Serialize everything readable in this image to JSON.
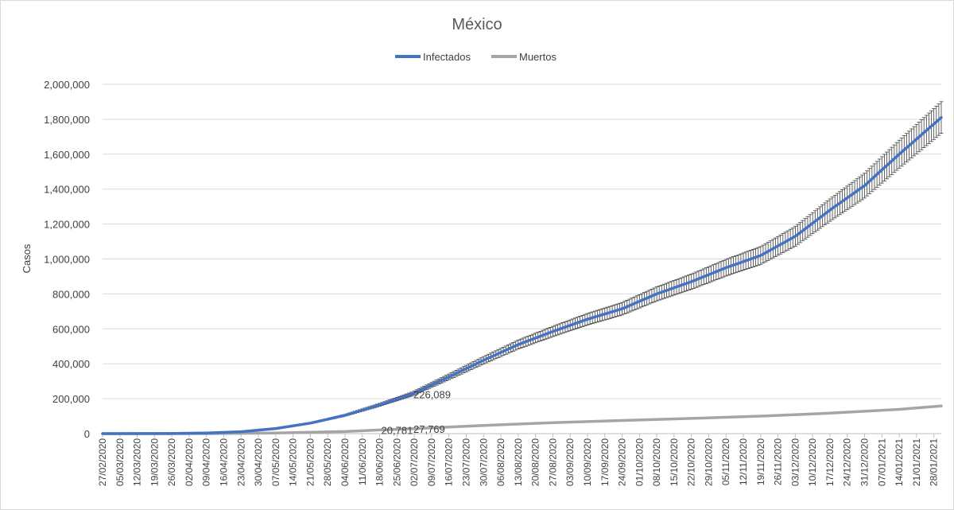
{
  "chart_data": {
    "type": "line",
    "title": "México",
    "xlabel": "",
    "ylabel": "Casos",
    "ylim": [
      0,
      2000000
    ],
    "yticks": [
      "0",
      "200,000",
      "400,000",
      "600,000",
      "800,000",
      "1,000,000",
      "1,200,000",
      "1,400,000",
      "1,600,000",
      "1,800,000",
      "2,000,000"
    ],
    "grid": true,
    "legend_position": "top",
    "error_bars": "infectados series, approximately ±5%",
    "x_start": "27/02/2020",
    "x_end": "31/01/2021",
    "xtick_labels": [
      "27/02/2020",
      "05/03/2020",
      "12/03/2020",
      "19/03/2020",
      "26/03/2020",
      "02/04/2020",
      "09/04/2020",
      "16/04/2020",
      "23/04/2020",
      "30/04/2020",
      "07/05/2020",
      "14/05/2020",
      "21/05/2020",
      "28/05/2020",
      "04/06/2020",
      "11/06/2020",
      "18/06/2020",
      "25/06/2020",
      "02/07/2020",
      "09/07/2020",
      "16/07/2020",
      "23/07/2020",
      "30/07/2020",
      "06/08/2020",
      "13/08/2020",
      "20/08/2020",
      "27/08/2020",
      "03/09/2020",
      "10/09/2020",
      "17/09/2020",
      "24/09/2020",
      "01/10/2020",
      "08/10/2020",
      "15/10/2020",
      "22/10/2020",
      "29/10/2020",
      "05/11/2020",
      "12/11/2020",
      "19/11/2020",
      "26/11/2020",
      "03/12/2020",
      "10/12/2020",
      "17/12/2020",
      "24/12/2020",
      "31/12/2020",
      "07/01/2021",
      "14/01/2021",
      "21/01/2021",
      "28/01/2021"
    ],
    "series": [
      {
        "name": "Infectados",
        "color": "#4472c4",
        "points": [
          {
            "x": "27/02/2020",
            "y": 0
          },
          {
            "x": "26/03/2020",
            "y": 500
          },
          {
            "x": "09/04/2020",
            "y": 3500
          },
          {
            "x": "23/04/2020",
            "y": 11000
          },
          {
            "x": "07/05/2020",
            "y": 29000
          },
          {
            "x": "21/05/2020",
            "y": 60000
          },
          {
            "x": "04/06/2020",
            "y": 105000
          },
          {
            "x": "18/06/2020",
            "y": 165000
          },
          {
            "x": "01/07/2020",
            "y": 226089
          },
          {
            "x": "16/07/2020",
            "y": 325000
          },
          {
            "x": "30/07/2020",
            "y": 420000
          },
          {
            "x": "13/08/2020",
            "y": 510000
          },
          {
            "x": "27/08/2020",
            "y": 585000
          },
          {
            "x": "10/09/2020",
            "y": 655000
          },
          {
            "x": "24/09/2020",
            "y": 715000
          },
          {
            "x": "08/10/2020",
            "y": 800000
          },
          {
            "x": "22/10/2020",
            "y": 870000
          },
          {
            "x": "05/11/2020",
            "y": 950000
          },
          {
            "x": "19/11/2020",
            "y": 1020000
          },
          {
            "x": "03/12/2020",
            "y": 1130000
          },
          {
            "x": "17/12/2020",
            "y": 1280000
          },
          {
            "x": "31/12/2020",
            "y": 1420000
          },
          {
            "x": "14/01/2021",
            "y": 1600000
          },
          {
            "x": "31/01/2021",
            "y": 1810000
          }
        ]
      },
      {
        "name": "Muertos",
        "color": "#a5a5a5",
        "points": [
          {
            "x": "27/02/2020",
            "y": 0
          },
          {
            "x": "09/04/2020",
            "y": 200
          },
          {
            "x": "07/05/2020",
            "y": 3000
          },
          {
            "x": "04/06/2020",
            "y": 12000
          },
          {
            "x": "18/06/2020",
            "y": 20781
          },
          {
            "x": "01/07/2020",
            "y": 27769
          },
          {
            "x": "30/07/2020",
            "y": 47000
          },
          {
            "x": "27/08/2020",
            "y": 63000
          },
          {
            "x": "24/09/2020",
            "y": 75000
          },
          {
            "x": "22/10/2020",
            "y": 87000
          },
          {
            "x": "19/11/2020",
            "y": 100000
          },
          {
            "x": "17/12/2020",
            "y": 117000
          },
          {
            "x": "14/01/2021",
            "y": 139000
          },
          {
            "x": "31/01/2021",
            "y": 158000
          }
        ]
      }
    ],
    "data_labels": [
      {
        "series": "Infectados",
        "x": "01/07/2020",
        "y": 226089,
        "text": "226,089"
      },
      {
        "series": "Muertos",
        "x": "18/06/2020",
        "y": 20781,
        "text": "20,781"
      },
      {
        "series": "Muertos",
        "x": "01/07/2020",
        "y": 27769,
        "text": "27,769"
      }
    ]
  }
}
